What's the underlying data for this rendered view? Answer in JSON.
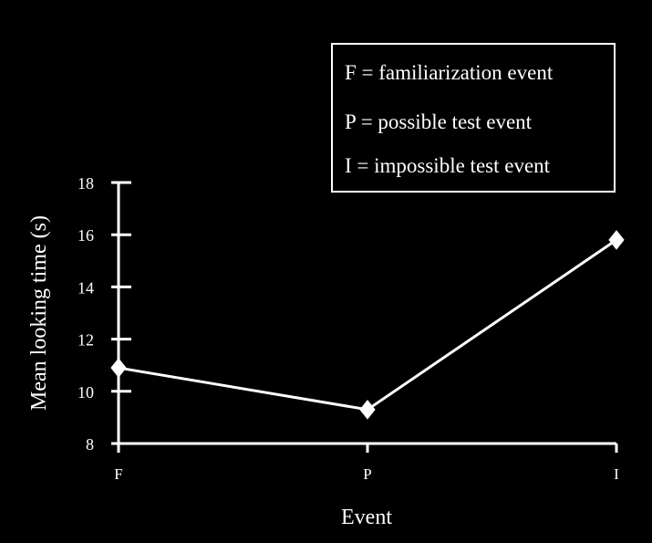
{
  "colors": {
    "background": "#000000",
    "foreground": "#ffffff"
  },
  "chart_data": {
    "type": "line",
    "categories": [
      "F",
      "P",
      "I"
    ],
    "values": [
      10.9,
      9.3,
      15.8
    ],
    "marker": "diamond",
    "xlabel": "Event",
    "ylabel": "Mean looking time (s)",
    "ylim": [
      8,
      18
    ],
    "yticks": [
      8,
      10,
      12,
      14,
      16,
      18
    ],
    "grid": false,
    "legend": {
      "placement": "top-right",
      "entries": [
        "F = familiarization event",
        "P = possible test event",
        "I = impossible test event"
      ]
    }
  }
}
